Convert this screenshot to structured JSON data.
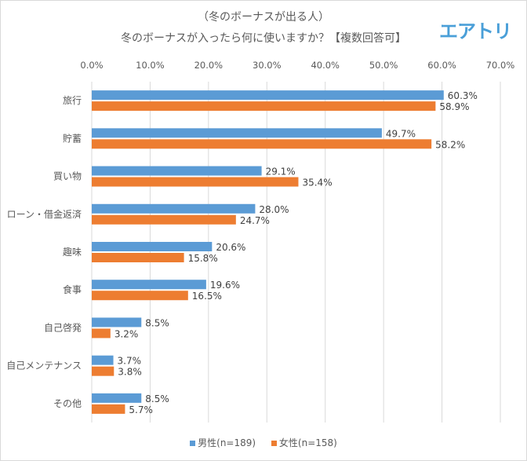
{
  "chart_data": {
    "type": "bar",
    "orientation": "horizontal",
    "title": "（冬のボーナスが出る人）",
    "subtitle": "冬のボーナスが入ったら何に使いますか？【複数回答可】",
    "logo": "エアトリ",
    "categories": [
      "旅行",
      "貯蓄",
      "買い物",
      "ローン・借金返済",
      "趣味",
      "食事",
      "自己啓発",
      "自己メンテナンス",
      "その他"
    ],
    "series": [
      {
        "name": "男性(n=189)",
        "color": "#5b9bd5",
        "values": [
          60.3,
          49.7,
          29.1,
          28.0,
          20.6,
          19.6,
          8.5,
          3.7,
          8.5
        ],
        "labels": [
          "60.3%",
          "49.7%",
          "29.1%",
          "28.0%",
          "20.6%",
          "19.6%",
          "8.5%",
          "3.7%",
          "8.5%"
        ]
      },
      {
        "name": "女性(n=158)",
        "color": "#ed7d31",
        "values": [
          58.9,
          58.2,
          35.4,
          24.7,
          15.8,
          16.5,
          3.2,
          3.8,
          5.7
        ],
        "labels": [
          "58.9%",
          "58.2%",
          "35.4%",
          "24.7%",
          "15.8%",
          "16.5%",
          "3.2%",
          "3.8%",
          "5.7%"
        ]
      }
    ],
    "xaxis": {
      "position": "top",
      "ticks": [
        "0.0%",
        "10.0%",
        "20.0%",
        "30.0%",
        "40.0%",
        "50.0%",
        "60.0%",
        "70.0%"
      ],
      "min": 0,
      "max": 70,
      "step": 10
    },
    "grid": true,
    "legend": "bottom"
  }
}
